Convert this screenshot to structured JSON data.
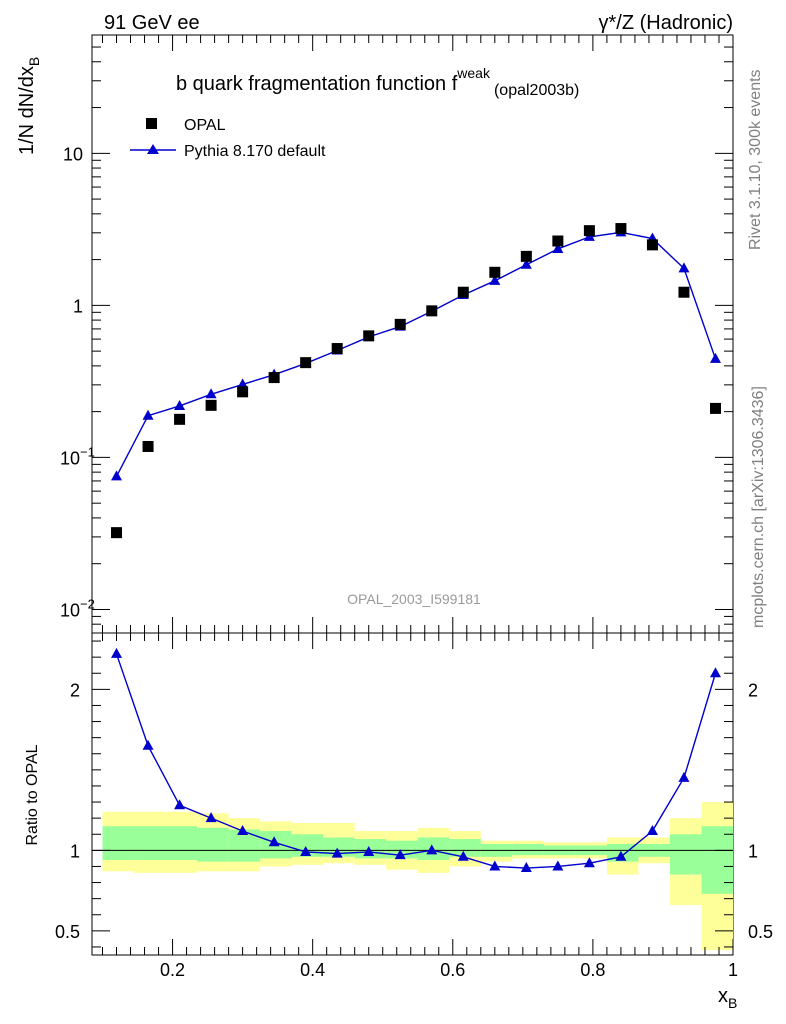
{
  "header": {
    "left": "91 GeV ee",
    "right": "γ*/Z (Hadronic)"
  },
  "side": {
    "rivet": "Rivet 3.1.10,  300k events",
    "mcplots": "mcplots.cern.ch [arXiv:1306.3436]"
  },
  "main_title": {
    "prefix": "b quark fragmentation function f",
    "superscript": "weak",
    "subscript": "(opal2003b)"
  },
  "watermark": "OPAL_2003_I599181",
  "y_label_top": "1/N dN/dx",
  "y_label_top_sub": "B",
  "y_label_ratio": "Ratio to OPAL",
  "x_label": "x",
  "x_label_sub": "B",
  "legend": {
    "data_label": "OPAL",
    "mc_label": "Pythia 8.170 default"
  },
  "colors": {
    "mc": "#0000cc",
    "data": "#000000",
    "band_inner": "#99ff99",
    "band_outer": "#ffff99",
    "reference_line": "#000000"
  },
  "chart_data": {
    "type": "scatter",
    "title": "b quark fragmentation function f^weak (opal2003b)",
    "xlabel": "x_B",
    "ylabel": "1/N dN/dx_B",
    "xlim": [
      0.085,
      1.0
    ],
    "ylim": [
      0.007,
      60
    ],
    "yscale": "log",
    "x": [
      0.12,
      0.165,
      0.21,
      0.255,
      0.3,
      0.345,
      0.39,
      0.435,
      0.48,
      0.525,
      0.57,
      0.615,
      0.66,
      0.705,
      0.75,
      0.795,
      0.84,
      0.885,
      0.93,
      0.975
    ],
    "series": [
      {
        "name": "OPAL",
        "marker": "square",
        "values": [
          0.032,
          0.118,
          0.178,
          0.22,
          0.27,
          0.335,
          0.42,
          0.52,
          0.63,
          0.75,
          0.92,
          1.22,
          1.65,
          2.1,
          2.65,
          3.1,
          3.2,
          2.5,
          1.22,
          0.21
        ]
      },
      {
        "name": "Pythia 8.170 default",
        "marker": "triangle",
        "values": [
          0.075,
          0.188,
          0.218,
          0.26,
          0.302,
          0.35,
          0.415,
          0.505,
          0.62,
          0.725,
          0.915,
          1.17,
          1.45,
          1.85,
          2.35,
          2.82,
          3.02,
          2.75,
          1.75,
          0.445
        ]
      }
    ],
    "x_ticks": [
      "0.2",
      "0.4",
      "0.6",
      "0.8",
      "1"
    ],
    "x_tick_values": [
      0.2,
      0.4,
      0.6,
      0.8,
      1.0
    ],
    "y_ticks": [
      {
        "value": 0.01,
        "base": "10",
        "exp": "−2"
      },
      {
        "value": 0.1,
        "base": "10",
        "exp": "−1"
      },
      {
        "value": 1,
        "base": "1",
        "exp": ""
      },
      {
        "value": 10,
        "base": "10",
        "exp": ""
      }
    ],
    "ratio": {
      "ylabel": "Ratio to OPAL",
      "ylim": [
        0.35,
        2.35
      ],
      "y_ticks": [
        "0.5",
        "1",
        "2"
      ],
      "y_tick_values": [
        0.5,
        1,
        2
      ],
      "mc_values": [
        2.22,
        1.65,
        1.28,
        1.2,
        1.12,
        1.05,
        0.99,
        0.98,
        0.99,
        0.97,
        1.0,
        0.96,
        0.9,
        0.89,
        0.9,
        0.92,
        0.96,
        1.12,
        1.45,
        2.1
      ],
      "bins": [
        0.1,
        0.145,
        0.19,
        0.235,
        0.28,
        0.325,
        0.37,
        0.415,
        0.46,
        0.505,
        0.55,
        0.595,
        0.64,
        0.685,
        0.73,
        0.775,
        0.82,
        0.865,
        0.91,
        0.955,
        1.0
      ],
      "band_inner_lo": [
        0.94,
        0.94,
        0.94,
        0.93,
        0.93,
        0.95,
        0.96,
        0.96,
        0.95,
        0.95,
        0.94,
        0.96,
        0.96,
        0.97,
        0.97,
        0.97,
        0.93,
        0.96,
        0.85,
        0.73
      ],
      "band_inner_hi": [
        1.15,
        1.15,
        1.15,
        1.14,
        1.13,
        1.12,
        1.1,
        1.08,
        1.07,
        1.06,
        1.08,
        1.07,
        1.04,
        1.04,
        1.03,
        1.03,
        1.04,
        1.04,
        1.1,
        1.15
      ],
      "band_outer_lo": [
        0.87,
        0.86,
        0.86,
        0.87,
        0.87,
        0.9,
        0.91,
        0.92,
        0.91,
        0.88,
        0.86,
        0.9,
        0.93,
        0.95,
        0.95,
        0.95,
        0.85,
        0.92,
        0.66,
        0.38
      ],
      "band_outer_hi": [
        1.24,
        1.24,
        1.24,
        1.23,
        1.2,
        1.18,
        1.17,
        1.17,
        1.12,
        1.12,
        1.14,
        1.12,
        1.06,
        1.06,
        1.05,
        1.05,
        1.08,
        1.08,
        1.2,
        1.3
      ]
    }
  }
}
